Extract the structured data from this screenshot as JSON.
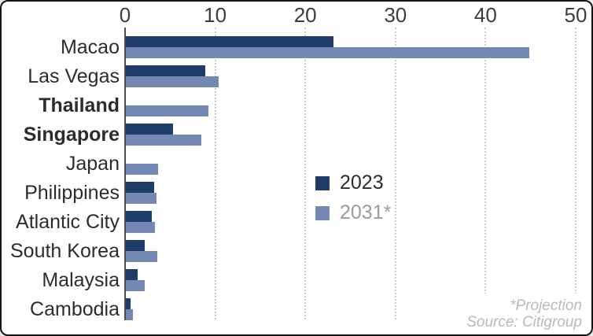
{
  "chart_data": {
    "type": "bar",
    "orientation": "horizontal",
    "axis_position": "top",
    "grid": "vertical-dotted",
    "xlim": [
      0,
      50
    ],
    "x_ticks": [
      0,
      10,
      20,
      30,
      40,
      50
    ],
    "categories": [
      "Macao",
      "Las Vegas",
      "Thailand",
      "Singapore",
      "Japan",
      "Philippines",
      "Atlantic City",
      "South Korea",
      "Malaysia",
      "Cambodia"
    ],
    "bold_categories": [
      "Thailand",
      "Singapore"
    ],
    "series": [
      {
        "name": "2023",
        "color": "#1e3e69",
        "values": [
          23.0,
          8.8,
          0,
          5.2,
          0,
          3.1,
          2.9,
          2.1,
          1.3,
          0.5
        ]
      },
      {
        "name": "2031*",
        "color": "#7389b4",
        "values": [
          44.8,
          10.3,
          9.2,
          8.4,
          3.6,
          3.4,
          3.2,
          3.5,
          2.1,
          0.8
        ]
      }
    ],
    "legend_position": "middle-right"
  },
  "legend": {
    "item_2023": "2023",
    "item_2031": "2031*"
  },
  "notes": {
    "projection": "*Projection",
    "source": "Source: Citigroup"
  },
  "colors": {
    "series_2023": "#1e3e69",
    "series_2031": "#7389b4",
    "gridline": "#cdcdcd",
    "axis_line": "#4b4b4b",
    "tick_text": "#3c3c3c",
    "category_text": "#2c2c2c",
    "muted_text": "#9c9c9c",
    "note_text": "#b9b9b9",
    "border": "#141414"
  }
}
